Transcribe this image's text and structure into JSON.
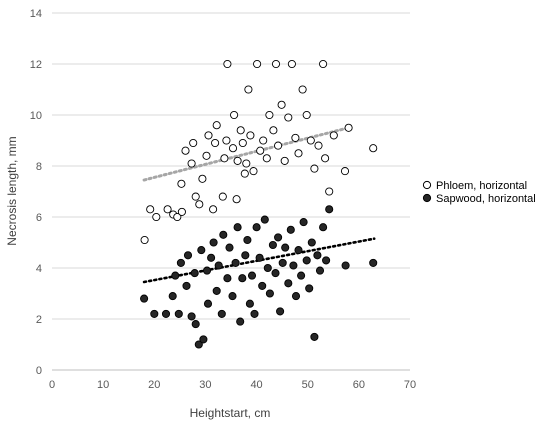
{
  "chart_data": {
    "type": "scatter",
    "xlabel": "Heightstart, cm",
    "ylabel": "Necrosis length, mm",
    "xlim": [
      0,
      70
    ],
    "ylim": [
      0,
      14
    ],
    "xticks": [
      "0",
      "10",
      "20",
      "30",
      "40",
      "50",
      "60",
      "70"
    ],
    "yticks": [
      "0",
      "2",
      "4",
      "6",
      "8",
      "10",
      "12",
      "14"
    ],
    "grid": "horizontal",
    "legend_position": "right",
    "series": [
      {
        "name": "Phloem, horizontal",
        "marker": "open-circle",
        "trendline_color": "#a6a6a6",
        "trendline": [
          [
            18,
            7.45
          ],
          [
            58,
            9.5
          ]
        ],
        "points": [
          [
            18.1,
            5.1
          ],
          [
            19.2,
            6.3
          ],
          [
            20.4,
            6.0
          ],
          [
            22.6,
            6.3
          ],
          [
            23.7,
            6.1
          ],
          [
            24.5,
            6.0
          ],
          [
            25.4,
            6.2
          ],
          [
            25.3,
            7.3
          ],
          [
            26.1,
            8.6
          ],
          [
            27.3,
            8.1
          ],
          [
            27.6,
            8.9
          ],
          [
            28.1,
            6.8
          ],
          [
            28.8,
            6.5
          ],
          [
            29.4,
            7.5
          ],
          [
            30.2,
            8.4
          ],
          [
            30.6,
            9.2
          ],
          [
            31.5,
            6.3
          ],
          [
            31.9,
            8.9
          ],
          [
            32.2,
            9.6
          ],
          [
            33.4,
            6.8
          ],
          [
            33.7,
            8.3
          ],
          [
            34.1,
            9.0
          ],
          [
            34.3,
            12.0
          ],
          [
            35.4,
            8.7
          ],
          [
            35.6,
            10.0
          ],
          [
            36.1,
            6.7
          ],
          [
            36.3,
            8.2
          ],
          [
            36.9,
            9.4
          ],
          [
            37.3,
            8.9
          ],
          [
            37.7,
            7.7
          ],
          [
            38.0,
            8.1
          ],
          [
            38.4,
            11.0
          ],
          [
            38.8,
            9.2
          ],
          [
            39.4,
            7.8
          ],
          [
            40.1,
            12.0
          ],
          [
            40.7,
            8.6
          ],
          [
            41.3,
            9.0
          ],
          [
            42.0,
            8.3
          ],
          [
            42.5,
            10.0
          ],
          [
            43.3,
            9.4
          ],
          [
            43.8,
            12.0
          ],
          [
            44.2,
            8.8
          ],
          [
            44.9,
            10.4
          ],
          [
            45.5,
            8.2
          ],
          [
            46.2,
            9.9
          ],
          [
            46.9,
            12.0
          ],
          [
            47.6,
            9.1
          ],
          [
            48.2,
            8.5
          ],
          [
            49.0,
            11.0
          ],
          [
            49.8,
            10.0
          ],
          [
            50.6,
            9.0
          ],
          [
            51.3,
            7.9
          ],
          [
            52.1,
            8.8
          ],
          [
            53.0,
            12.0
          ],
          [
            53.4,
            8.3
          ],
          [
            54.2,
            7.0
          ],
          [
            55.1,
            9.2
          ],
          [
            57.3,
            7.8
          ],
          [
            58.0,
            9.5
          ],
          [
            62.8,
            8.7
          ]
        ]
      },
      {
        "name": "Sapwood, horizontal",
        "marker": "filled-circle",
        "trendline_color": "#000000",
        "trendline": [
          [
            18,
            3.45
          ],
          [
            63,
            5.15
          ]
        ],
        "points": [
          [
            18.0,
            2.8
          ],
          [
            20.0,
            2.2
          ],
          [
            22.3,
            2.2
          ],
          [
            23.6,
            2.9
          ],
          [
            24.1,
            3.7
          ],
          [
            24.8,
            2.2
          ],
          [
            25.2,
            4.2
          ],
          [
            26.3,
            3.3
          ],
          [
            26.6,
            4.5
          ],
          [
            27.3,
            2.1
          ],
          [
            27.9,
            3.8
          ],
          [
            28.1,
            1.8
          ],
          [
            28.7,
            1.0
          ],
          [
            29.2,
            4.7
          ],
          [
            29.6,
            1.2
          ],
          [
            30.3,
            3.9
          ],
          [
            30.5,
            2.6
          ],
          [
            31.1,
            4.4
          ],
          [
            31.6,
            5.0
          ],
          [
            32.2,
            3.1
          ],
          [
            32.6,
            4.1
          ],
          [
            33.2,
            2.2
          ],
          [
            33.5,
            5.3
          ],
          [
            34.3,
            3.6
          ],
          [
            34.7,
            4.8
          ],
          [
            35.3,
            2.9
          ],
          [
            35.9,
            4.2
          ],
          [
            36.3,
            5.6
          ],
          [
            36.8,
            1.9
          ],
          [
            37.2,
            3.6
          ],
          [
            37.8,
            4.5
          ],
          [
            38.2,
            5.1
          ],
          [
            38.7,
            2.6
          ],
          [
            39.1,
            3.7
          ],
          [
            39.6,
            2.2
          ],
          [
            40.0,
            5.6
          ],
          [
            40.6,
            4.4
          ],
          [
            41.1,
            3.3
          ],
          [
            41.6,
            5.9
          ],
          [
            42.2,
            4.0
          ],
          [
            42.6,
            3.0
          ],
          [
            43.2,
            4.9
          ],
          [
            43.7,
            3.8
          ],
          [
            44.2,
            5.2
          ],
          [
            44.6,
            2.3
          ],
          [
            45.1,
            4.2
          ],
          [
            45.6,
            4.8
          ],
          [
            46.2,
            3.4
          ],
          [
            46.7,
            5.5
          ],
          [
            47.2,
            4.1
          ],
          [
            47.7,
            2.9
          ],
          [
            48.2,
            4.7
          ],
          [
            48.7,
            3.7
          ],
          [
            49.2,
            5.8
          ],
          [
            49.8,
            4.3
          ],
          [
            50.3,
            3.2
          ],
          [
            50.8,
            5.0
          ],
          [
            51.3,
            1.3
          ],
          [
            51.9,
            4.5
          ],
          [
            52.4,
            3.9
          ],
          [
            53.0,
            5.6
          ],
          [
            53.6,
            4.3
          ],
          [
            54.2,
            6.3
          ],
          [
            57.4,
            4.1
          ],
          [
            62.8,
            4.2
          ]
        ]
      }
    ]
  }
}
